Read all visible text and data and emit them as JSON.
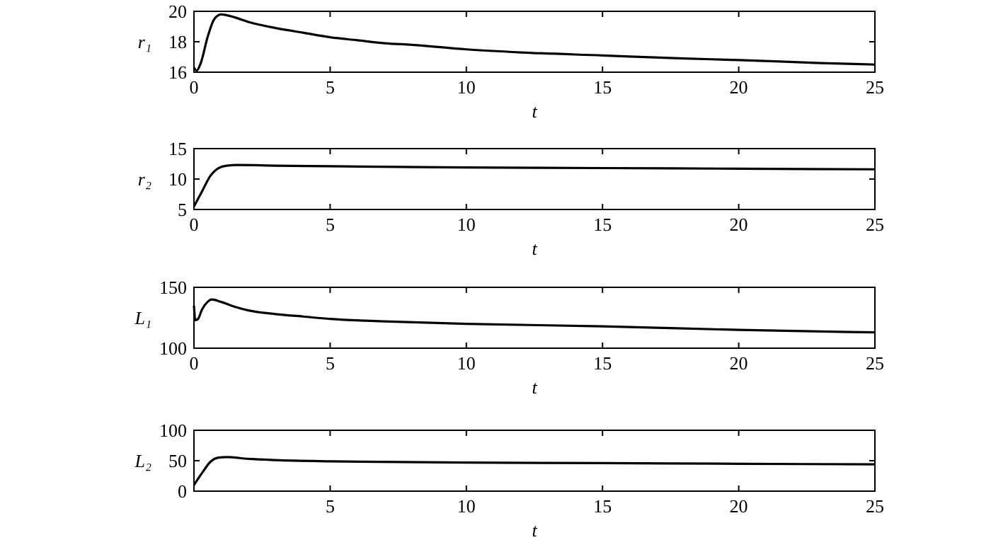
{
  "chart_data": [
    {
      "type": "line",
      "xlabel": "t",
      "ylabel": "r₁",
      "xlim": [
        0,
        25
      ],
      "xticks": [
        0,
        5,
        10,
        15,
        20,
        25
      ],
      "ylim": [
        16,
        20
      ],
      "yticks": [
        16,
        18,
        20
      ],
      "grid": false,
      "line_style": "solid",
      "series": [
        {
          "color": "#000000",
          "x": [
            0,
            0.1,
            0.25,
            0.5,
            0.75,
            1,
            1.5,
            2,
            3,
            4,
            5,
            6,
            7,
            8,
            10,
            12,
            15,
            18,
            20,
            23,
            25
          ],
          "values": [
            16.3,
            16.1,
            16.6,
            18.3,
            19.5,
            19.8,
            19.6,
            19.3,
            18.9,
            18.6,
            18.3,
            18.1,
            17.9,
            17.8,
            17.5,
            17.3,
            17.1,
            16.9,
            16.8,
            16.6,
            16.5
          ]
        }
      ]
    },
    {
      "type": "line",
      "xlabel": "t",
      "ylabel": "r₂",
      "xlim": [
        0,
        25
      ],
      "xticks": [
        0,
        5,
        10,
        15,
        20,
        25
      ],
      "ylim": [
        5,
        15
      ],
      "yticks": [
        5,
        10,
        15
      ],
      "grid": false,
      "line_style": "solid",
      "series": [
        {
          "color": "#000000",
          "x": [
            0,
            0.3,
            0.6,
            0.9,
            1.2,
            1.6,
            3,
            5,
            10,
            15,
            20,
            25
          ],
          "values": [
            5.5,
            8,
            10.5,
            11.8,
            12.2,
            12.3,
            12.2,
            12.1,
            11.9,
            11.8,
            11.7,
            11.6
          ]
        }
      ]
    },
    {
      "type": "line",
      "xlabel": "t",
      "ylabel": "L₁",
      "xlim": [
        0,
        25
      ],
      "xticks": [
        0,
        5,
        10,
        15,
        20,
        25
      ],
      "ylim": [
        100,
        150
      ],
      "yticks": [
        100,
        150
      ],
      "grid": false,
      "line_style": "solid",
      "series": [
        {
          "color": "#000000",
          "x": [
            0,
            0.05,
            0.15,
            0.3,
            0.5,
            0.65,
            1,
            1.5,
            2,
            3,
            4,
            5,
            7,
            10,
            15,
            20,
            25
          ],
          "values": [
            135,
            123,
            124,
            132,
            138,
            140,
            138,
            134,
            131,
            128,
            126,
            124,
            122,
            120,
            118,
            115,
            113
          ]
        }
      ]
    },
    {
      "type": "line",
      "xlabel": "t",
      "ylabel": "L₂",
      "xlim": [
        0,
        25
      ],
      "xticks": [
        5,
        10,
        15,
        20,
        25
      ],
      "ylim": [
        0,
        100
      ],
      "yticks": [
        0,
        50,
        100
      ],
      "grid": false,
      "line_style": "solid",
      "series": [
        {
          "color": "#000000",
          "x": [
            0,
            0.3,
            0.6,
            0.9,
            1.2,
            2,
            3,
            5,
            10,
            15,
            20,
            25
          ],
          "values": [
            10,
            30,
            48,
            55,
            56,
            53,
            51,
            49,
            47,
            46,
            45,
            44
          ]
        }
      ]
    }
  ]
}
